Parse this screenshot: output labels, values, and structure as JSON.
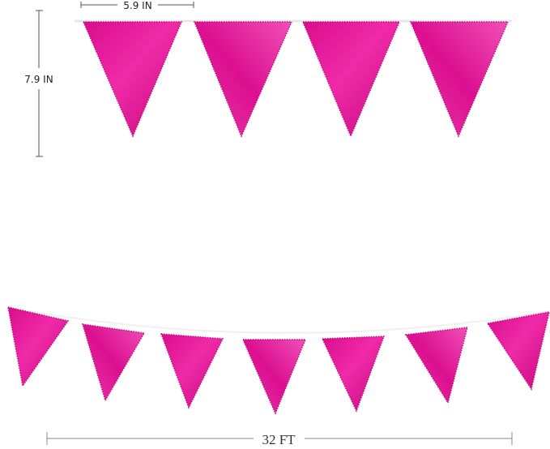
{
  "dimensions": {
    "flag_width": "5.9 IN",
    "flag_height": "7.9 IN",
    "total_length": "32 FT"
  },
  "colors": {
    "flag": "#e5139b",
    "flag_dark": "#c8087f",
    "flag_light": "#f050b8",
    "string": "#f2f2f2",
    "dimension_line": "#555555"
  },
  "flags": {
    "top_row_count": 4,
    "bottom_row_count": 7
  }
}
